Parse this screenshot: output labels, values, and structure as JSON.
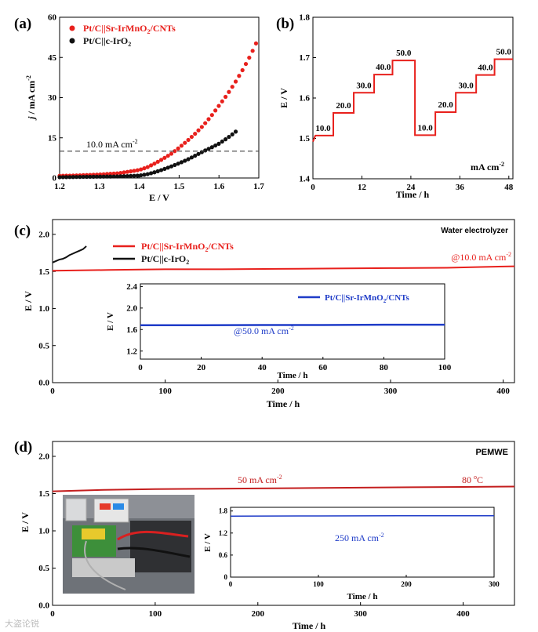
{
  "colors": {
    "red": "#e8201c",
    "black": "#111111",
    "blue": "#1f3cc8",
    "axis": "#000000"
  },
  "watermark": "大盗论锐",
  "chart_data": [
    {
      "panel": "(a)",
      "type": "line",
      "xlabel": "E / V",
      "ylabel_parts": [
        "j",
        " / mA cm",
        "-2"
      ],
      "xlim": [
        1.2,
        1.7
      ],
      "ylim": [
        0,
        60
      ],
      "xticks": [
        "1.2",
        "1.3",
        "1.4",
        "1.5",
        "1.6",
        "1.7"
      ],
      "yticks": [
        "0",
        "15",
        "30",
        "45",
        "60"
      ],
      "reference_line": {
        "y": 10,
        "label": "10.0 mA cm",
        "sup": "-2"
      },
      "legend": [
        {
          "name": "Pt/C||Sr-IrMnO",
          "sub": "2",
          "tail": "/CNTs",
          "color": "red"
        },
        {
          "name": "Pt/C||c-IrO",
          "sub": "2",
          "tail": "",
          "color": "black"
        }
      ],
      "series": [
        {
          "name": "Pt/C||Sr-IrMnO2/CNTs",
          "color": "red",
          "x": [
            1.2,
            1.25,
            1.3,
            1.35,
            1.4,
            1.42,
            1.44,
            1.46,
            1.48,
            1.5,
            1.52,
            1.54,
            1.56,
            1.58,
            1.6,
            1.62,
            1.64,
            1.66,
            1.68,
            1.7
          ],
          "y": [
            0.8,
            1.0,
            1.3,
            1.8,
            3.0,
            4.0,
            5.5,
            7.2,
            9.0,
            11.3,
            13.8,
            16.5,
            19.5,
            23.0,
            27.0,
            31.0,
            35.5,
            40.5,
            46.0,
            52.5
          ]
        },
        {
          "name": "Pt/C||c-IrO2",
          "color": "black",
          "x": [
            1.2,
            1.25,
            1.3,
            1.35,
            1.4,
            1.42,
            1.44,
            1.46,
            1.48,
            1.5,
            1.52,
            1.54,
            1.56,
            1.58,
            1.6,
            1.62,
            1.64,
            1.65
          ],
          "y": [
            0.3,
            0.4,
            0.5,
            0.6,
            0.9,
            1.4,
            2.2,
            3.2,
            4.3,
            5.5,
            6.8,
            8.3,
            9.9,
            11.3,
            12.8,
            14.8,
            17.0,
            18.5
          ]
        }
      ]
    },
    {
      "panel": "(b)",
      "type": "line",
      "xlabel": "Time / h",
      "ylabel": "E / V",
      "xlim": [
        0,
        49
      ],
      "ylim": [
        1.4,
        1.8
      ],
      "xticks": [
        "0",
        "12",
        "24",
        "36",
        "48"
      ],
      "xtick_values": [
        0,
        12,
        24,
        36,
        48
      ],
      "yticks": [
        "1.4",
        "1.5",
        "1.6",
        "1.7",
        "1.8"
      ],
      "unit_label": "mA cm",
      "unit_sup": "-2",
      "steps": [
        {
          "current": "10.0",
          "t": [
            0,
            5
          ],
          "E": 1.507
        },
        {
          "current": "20.0",
          "t": [
            5,
            10
          ],
          "E": 1.563
        },
        {
          "current": "30.0",
          "t": [
            10,
            15
          ],
          "E": 1.613
        },
        {
          "current": "40.0",
          "t": [
            15,
            19.5
          ],
          "E": 1.658
        },
        {
          "current": "50.0",
          "t": [
            19.5,
            25
          ],
          "E": 1.693
        },
        {
          "current": "10.0",
          "t": [
            25,
            30
          ],
          "E": 1.508
        },
        {
          "current": "20.0",
          "t": [
            30,
            35
          ],
          "E": 1.565
        },
        {
          "current": "30.0",
          "t": [
            35,
            40
          ],
          "E": 1.613
        },
        {
          "current": "40.0",
          "t": [
            40,
            44.5
          ],
          "E": 1.657
        },
        {
          "current": "50.0",
          "t": [
            44.5,
            49
          ],
          "E": 1.696
        }
      ]
    },
    {
      "panel": "(c)",
      "type": "line",
      "xlabel": "Time / h",
      "ylabel": "E / V",
      "xlim": [
        0,
        410
      ],
      "ylim": [
        0.0,
        2.2
      ],
      "xticks": [
        "0",
        "100",
        "200",
        "300",
        "400"
      ],
      "xtick_values": [
        0,
        100,
        200,
        300,
        400
      ],
      "yticks": [
        "0.0",
        "0.5",
        "1.0",
        "1.5",
        "2.0"
      ],
      "ytick_values": [
        0,
        0.5,
        1.0,
        1.5,
        2.0
      ],
      "title": "Water electrolyzer",
      "annotation": {
        "text": "@10.0 mA cm",
        "sup": "-2"
      },
      "legend": [
        {
          "name": "Pt/C||Sr-IrMnO",
          "sub": "2",
          "tail": "/CNTs",
          "color": "red"
        },
        {
          "name": "Pt/C||c-IrO",
          "sub": "2",
          "tail": "",
          "color": "black"
        }
      ],
      "series": [
        {
          "name": "Pt/C||Sr-IrMnO2/CNTs",
          "color": "red",
          "x": [
            0,
            50,
            100,
            150,
            200,
            250,
            300,
            350,
            380,
            410
          ],
          "y": [
            1.51,
            1.52,
            1.53,
            1.53,
            1.535,
            1.54,
            1.545,
            1.55,
            1.56,
            1.57
          ]
        },
        {
          "name": "Pt/C||c-IrO2",
          "color": "black",
          "x": [
            0,
            3,
            6,
            9,
            12,
            15,
            18,
            21,
            24,
            27,
            30
          ],
          "y": [
            1.62,
            1.64,
            1.66,
            1.67,
            1.69,
            1.72,
            1.74,
            1.76,
            1.78,
            1.8,
            1.84
          ]
        }
      ],
      "inset": {
        "xlim": [
          0,
          100
        ],
        "ylim": [
          1.05,
          2.45
        ],
        "xticks": [
          "0",
          "20",
          "40",
          "60",
          "80",
          "100"
        ],
        "xtick_values": [
          0,
          20,
          40,
          60,
          80,
          100
        ],
        "yticks": [
          "1.2",
          "1.6",
          "2.0",
          "2.4"
        ],
        "ytick_values": [
          1.2,
          1.6,
          2.0,
          2.4
        ],
        "xlabel": "Time / h",
        "ylabel": "E / V",
        "legend": {
          "name": "Pt/C||Sr-IrMnO",
          "sub": "2",
          "tail": "/CNTs",
          "color": "blue"
        },
        "annotation": {
          "text": "@50.0 mA cm",
          "sup": "-2"
        },
        "series": {
          "x": [
            0,
            20,
            40,
            60,
            80,
            100
          ],
          "y": [
            1.68,
            1.68,
            1.685,
            1.685,
            1.69,
            1.69
          ]
        }
      }
    },
    {
      "panel": "(d)",
      "type": "line",
      "xlabel": "Time / h",
      "ylabel": "E / V",
      "xlim": [
        0,
        450
      ],
      "ylim": [
        0.0,
        2.2
      ],
      "xticks": [
        "0",
        "100",
        "200",
        "300",
        "400"
      ],
      "xtick_values": [
        0,
        100,
        200,
        300,
        400
      ],
      "yticks": [
        "0.0",
        "0.5",
        "1.0",
        "1.5",
        "2.0"
      ],
      "ytick_values": [
        0,
        0.5,
        1.0,
        1.5,
        2.0
      ],
      "title": "PEMWE",
      "annotation": {
        "text": "50 mA cm",
        "sup": "-2"
      },
      "temperature": {
        "text": "80 ",
        "sup": "o",
        "tail": "C"
      },
      "photo_label": "PEM electrolyzer test setup photo",
      "series": [
        {
          "name": "PEMWE @ 50 mA cm-2",
          "color": "red",
          "x": [
            0,
            50,
            100,
            150,
            200,
            250,
            300,
            350,
            400,
            450
          ],
          "y": [
            1.53,
            1.55,
            1.56,
            1.565,
            1.57,
            1.575,
            1.58,
            1.585,
            1.59,
            1.595
          ]
        }
      ],
      "inset": {
        "xlim": [
          0,
          300
        ],
        "ylim": [
          0,
          1.9
        ],
        "xticks": [
          "0",
          "100",
          "200",
          "300"
        ],
        "xtick_values": [
          0,
          100,
          200,
          300
        ],
        "yticks": [
          "0",
          "0.6",
          "1.2",
          "1.8"
        ],
        "ytick_values": [
          0,
          0.6,
          1.2,
          1.8
        ],
        "xlabel": "Time / h",
        "ylabel": "E / V",
        "annotation": {
          "text": "250 mA cm",
          "sup": "-2"
        },
        "series": {
          "x": [
            0,
            100,
            200,
            300
          ],
          "y": [
            1.66,
            1.665,
            1.67,
            1.67
          ]
        }
      }
    }
  ]
}
